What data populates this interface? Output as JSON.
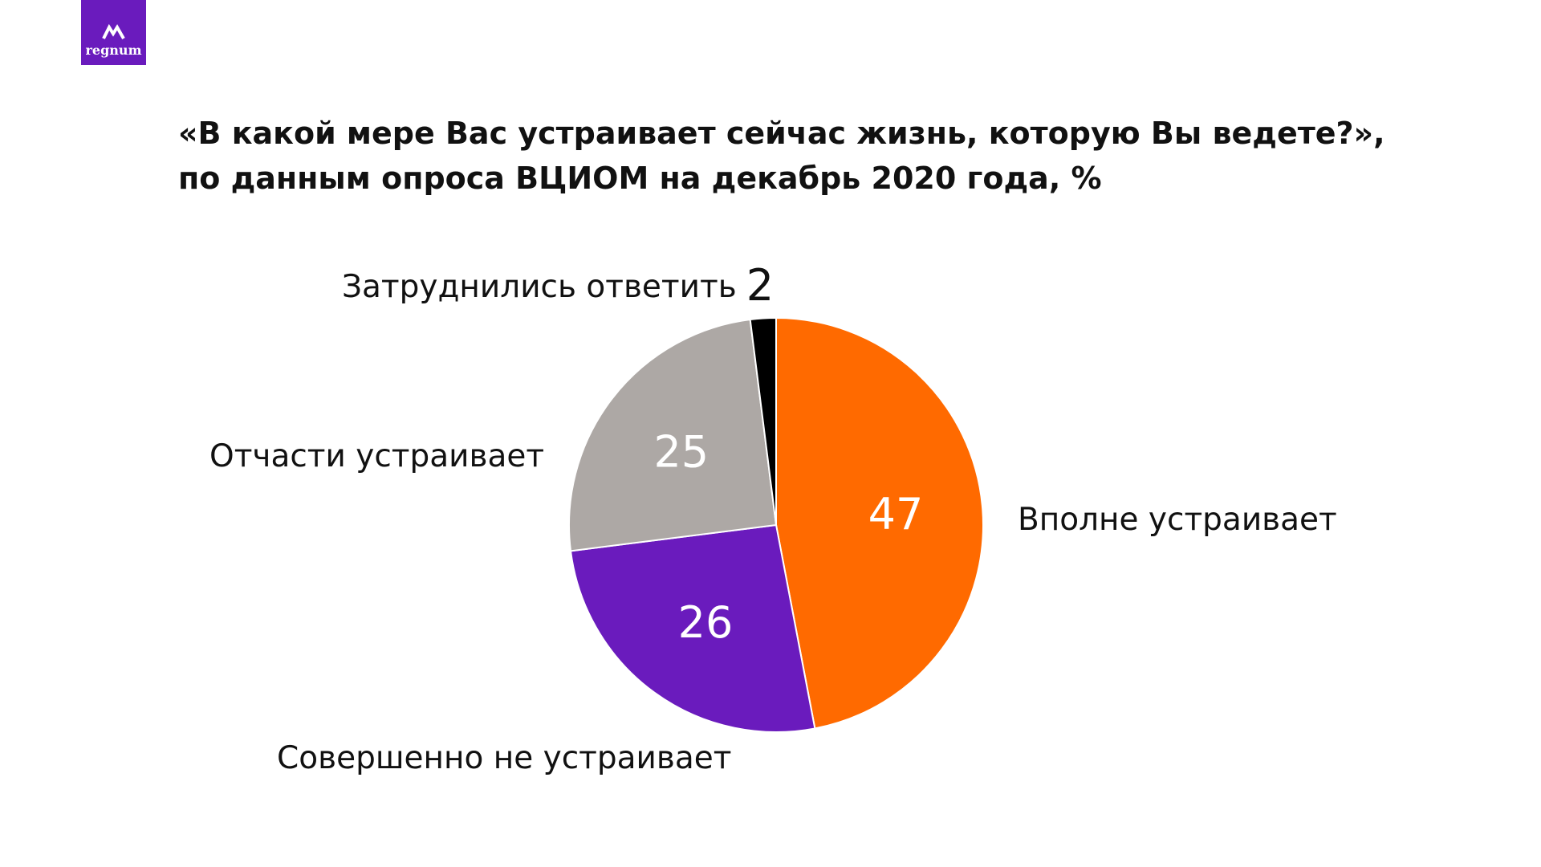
{
  "logo": {
    "text": "regnum"
  },
  "title": {
    "line1": "«В какой мере Вас устраивает сейчас жизнь, которую Вы ведете?»,",
    "line2": "по данным опроса ВЦИОМ на декабрь 2020 года, %"
  },
  "colors": {
    "brand": "#6a1bbd",
    "slice_full": "#ff6a00",
    "slice_none": "#6a1bbd",
    "slice_partial": "#ada8a5",
    "slice_unsure": "#000000"
  },
  "chart_data": {
    "type": "pie",
    "title": "«В какой мере Вас устраивает сейчас жизнь, которую Вы ведете?», по данным опроса ВЦИОМ на декабрь 2020 года, %",
    "start": "12 o'clock",
    "direction": "clockwise",
    "slices": [
      {
        "label": "Вполне устраивает",
        "value": 47,
        "color": "#ff6a00",
        "value_label_inside": true
      },
      {
        "label": "Совершенно не устраивает",
        "value": 26,
        "color": "#6a1bbd",
        "value_label_inside": true
      },
      {
        "label": "Отчасти устраивает",
        "value": 25,
        "color": "#ada8a5",
        "value_label_inside": true
      },
      {
        "label": "Затруднились ответить",
        "value": 2,
        "color": "#000000",
        "value_label_inside": false
      }
    ]
  }
}
